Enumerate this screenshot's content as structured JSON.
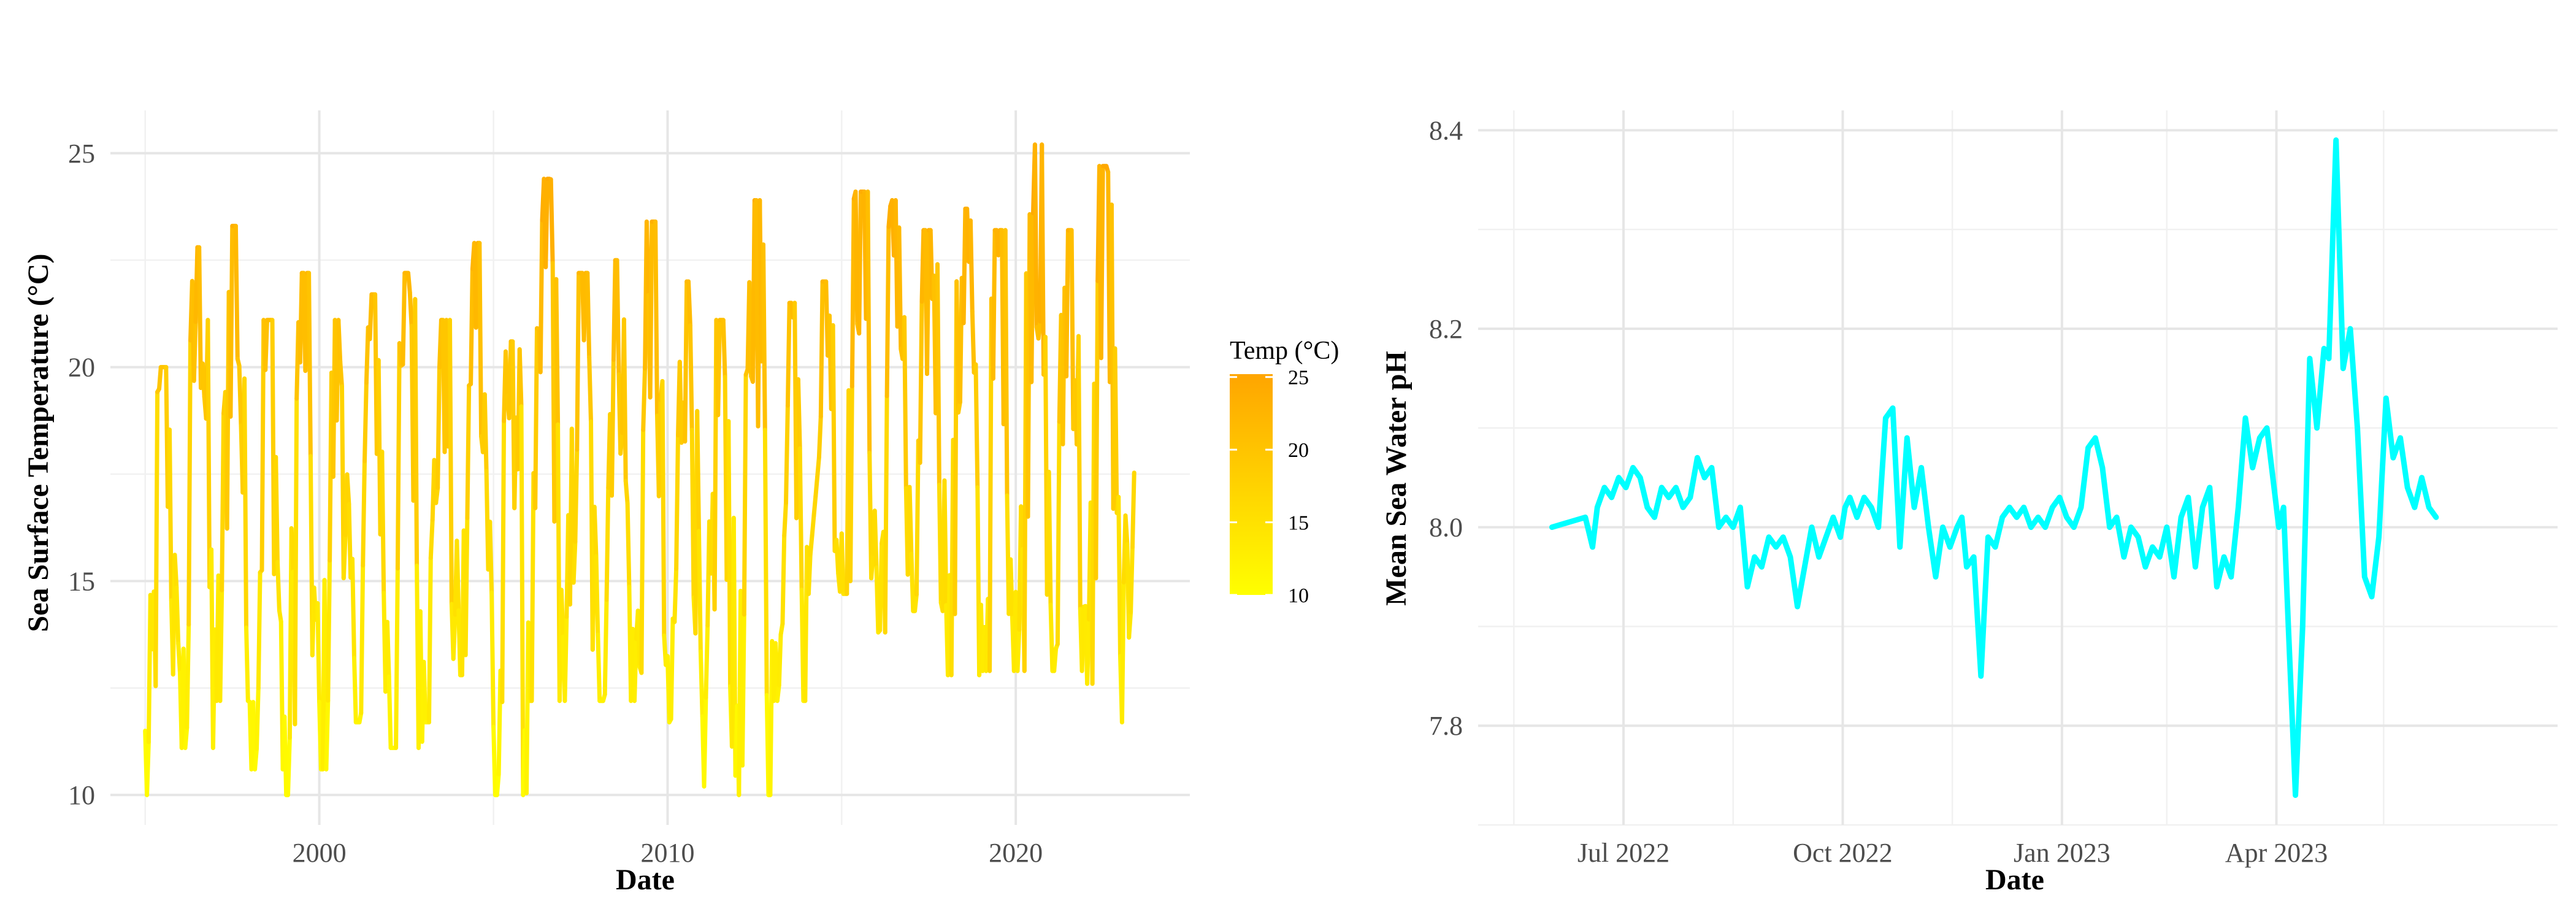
{
  "chart_data": [
    {
      "type": "line",
      "xlabel": "Date",
      "ylabel": "Sea Surface Temperature (°C)",
      "x_type": "date",
      "x_range": [
        "1995-01-01",
        "2023-06-01"
      ],
      "xlim": [
        "1994-01-01",
        "2024-12-31"
      ],
      "x_ticks": [
        {
          "label": "2000",
          "date": "2000-01-01"
        },
        {
          "label": "2010",
          "date": "2010-01-01"
        },
        {
          "label": "2020",
          "date": "2020-01-01"
        }
      ],
      "ylim": [
        9.3,
        26
      ],
      "y_ticks": [
        10,
        15,
        20,
        25
      ],
      "grid": true,
      "color_scale": {
        "title": "Temp (°C)",
        "low": "#FFFF00",
        "high": "#FFA500",
        "min": 10,
        "max": 25.2,
        "ticks": [
          10,
          15,
          20,
          25
        ]
      },
      "series": [
        {
          "points_per_year": 20,
          "yearly": [
            {
              "year": 1995,
              "min": 10.0,
              "max": 20.0
            },
            {
              "year": 1996,
              "min": 11.1,
              "max": 22.8
            },
            {
              "year": 1997,
              "min": 12.2,
              "max": 23.3
            },
            {
              "year": 1998,
              "min": 10.6,
              "max": 21.1
            },
            {
              "year": 1999,
              "min": 10.0,
              "max": 22.2
            },
            {
              "year": 2000,
              "min": 10.6,
              "max": 21.1
            },
            {
              "year": 2001,
              "min": 11.7,
              "max": 21.7
            },
            {
              "year": 2002,
              "min": 11.1,
              "max": 22.2
            },
            {
              "year": 2003,
              "min": 11.7,
              "max": 21.1
            },
            {
              "year": 2004,
              "min": 12.8,
              "max": 22.9
            },
            {
              "year": 2005,
              "min": 10.0,
              "max": 20.6
            },
            {
              "year": 2006,
              "min": 12.2,
              "max": 24.4
            },
            {
              "year": 2007,
              "min": 12.2,
              "max": 22.2
            },
            {
              "year": 2008,
              "min": 12.2,
              "max": 22.5
            },
            {
              "year": 2009,
              "min": 12.2,
              "max": 23.4
            },
            {
              "year": 2010,
              "min": 11.7,
              "max": 22.0
            },
            {
              "year": 2011,
              "min": 10.2,
              "max": 21.1
            },
            {
              "year": 2012,
              "min": 10.0,
              "max": 23.9
            },
            {
              "year": 2013,
              "min": 12.2,
              "max": 21.5
            },
            {
              "year": 2014,
              "min": 14.7,
              "max": 22.0
            },
            {
              "year": 2015,
              "min": 14.7,
              "max": 24.1
            },
            {
              "year": 2016,
              "min": 13.8,
              "max": 23.9
            },
            {
              "year": 2017,
              "min": 14.3,
              "max": 23.2
            },
            {
              "year": 2018,
              "min": 12.8,
              "max": 23.7
            },
            {
              "year": 2019,
              "min": 12.9,
              "max": 23.2
            },
            {
              "year": 2020,
              "min": 12.9,
              "max": 25.2
            },
            {
              "year": 2021,
              "min": 12.9,
              "max": 23.2
            },
            {
              "year": 2022,
              "min": 12.6,
              "max": 24.7
            },
            {
              "year": 2023,
              "min": 11.7,
              "max": 22.0
            }
          ]
        }
      ]
    },
    {
      "type": "line",
      "xlabel": "Date",
      "ylabel": "Mean Sea Water pH",
      "x_type": "date",
      "xlim": [
        "2022-05-01",
        "2023-07-28"
      ],
      "x_ticks": [
        {
          "label": "Jul 2022",
          "date": "2022-07-01"
        },
        {
          "label": "Oct 2022",
          "date": "2022-10-01"
        },
        {
          "label": "Jan 2023",
          "date": "2023-01-01"
        },
        {
          "label": "Apr 2023",
          "date": "2023-04-01"
        }
      ],
      "ylim": [
        7.7,
        8.42
      ],
      "y_ticks": [
        7.8,
        8.0,
        8.2,
        8.4
      ],
      "grid": true,
      "series": [
        {
          "color": "#00FFFF",
          "x": [
            "2022-06-01",
            "2022-06-15",
            "2022-06-18",
            "2022-06-20",
            "2022-06-23",
            "2022-06-26",
            "2022-06-29",
            "2022-07-02",
            "2022-07-05",
            "2022-07-08",
            "2022-07-11",
            "2022-07-14",
            "2022-07-17",
            "2022-07-20",
            "2022-07-23",
            "2022-07-26",
            "2022-07-29",
            "2022-08-01",
            "2022-08-04",
            "2022-08-07",
            "2022-08-10",
            "2022-08-13",
            "2022-08-16",
            "2022-08-19",
            "2022-08-22",
            "2022-08-25",
            "2022-08-28",
            "2022-08-31",
            "2022-09-03",
            "2022-09-06",
            "2022-09-09",
            "2022-09-12",
            "2022-09-15",
            "2022-09-18",
            "2022-09-21",
            "2022-09-24",
            "2022-09-27",
            "2022-09-30",
            "2022-10-02",
            "2022-10-04",
            "2022-10-07",
            "2022-10-10",
            "2022-10-13",
            "2022-10-16",
            "2022-10-19",
            "2022-10-22",
            "2022-10-25",
            "2022-10-28",
            "2022-10-31",
            "2022-11-03",
            "2022-11-06",
            "2022-11-09",
            "2022-11-12",
            "2022-11-15",
            "2022-11-18",
            "2022-11-20",
            "2022-11-22",
            "2022-11-25",
            "2022-11-28",
            "2022-12-01",
            "2022-12-04",
            "2022-12-07",
            "2022-12-10",
            "2022-12-13",
            "2022-12-16",
            "2022-12-19",
            "2022-12-22",
            "2022-12-25",
            "2022-12-28",
            "2022-12-31",
            "2023-01-03",
            "2023-01-06",
            "2023-01-09",
            "2023-01-12",
            "2023-01-15",
            "2023-01-18",
            "2023-01-21",
            "2023-01-24",
            "2023-01-27",
            "2023-01-30",
            "2023-02-02",
            "2023-02-05",
            "2023-02-08",
            "2023-02-11",
            "2023-02-14",
            "2023-02-17",
            "2023-02-20",
            "2023-02-23",
            "2023-02-26",
            "2023-03-01",
            "2023-03-04",
            "2023-03-07",
            "2023-03-10",
            "2023-03-13",
            "2023-03-16",
            "2023-03-19",
            "2023-03-22",
            "2023-03-25",
            "2023-03-28",
            "2023-03-31",
            "2023-04-02",
            "2023-04-04",
            "2023-04-06",
            "2023-04-09",
            "2023-04-12",
            "2023-04-15",
            "2023-04-18",
            "2023-04-21",
            "2023-04-23",
            "2023-04-26",
            "2023-04-29",
            "2023-05-02",
            "2023-05-05",
            "2023-05-08",
            "2023-05-11",
            "2023-05-14",
            "2023-05-17",
            "2023-05-20",
            "2023-05-23",
            "2023-05-26",
            "2023-05-29",
            "2023-06-01",
            "2023-06-04",
            "2023-06-07"
          ],
          "values": [
            8.0,
            8.01,
            7.98,
            8.02,
            8.04,
            8.03,
            8.05,
            8.04,
            8.06,
            8.05,
            8.02,
            8.01,
            8.04,
            8.03,
            8.04,
            8.02,
            8.03,
            8.07,
            8.05,
            8.06,
            8.0,
            8.01,
            8.0,
            8.02,
            7.94,
            7.97,
            7.96,
            7.99,
            7.98,
            7.99,
            7.97,
            7.92,
            7.96,
            8.0,
            7.97,
            7.99,
            8.01,
            7.99,
            8.02,
            8.03,
            8.01,
            8.03,
            8.02,
            8.0,
            8.11,
            8.12,
            7.98,
            8.09,
            8.02,
            8.06,
            8.0,
            7.95,
            8.0,
            7.98,
            8.0,
            8.01,
            7.96,
            7.97,
            7.85,
            7.99,
            7.98,
            8.01,
            8.02,
            8.01,
            8.02,
            8.0,
            8.01,
            8.0,
            8.02,
            8.03,
            8.01,
            8.0,
            8.02,
            8.08,
            8.09,
            8.06,
            8.0,
            8.01,
            7.97,
            8.0,
            7.99,
            7.96,
            7.98,
            7.97,
            8.0,
            7.95,
            8.01,
            8.03,
            7.96,
            8.02,
            8.04,
            7.94,
            7.97,
            7.95,
            8.02,
            8.11,
            8.06,
            8.09,
            8.1,
            8.04,
            8.0,
            8.02,
            7.9,
            7.73,
            7.9,
            8.17,
            8.1,
            8.18,
            8.17,
            8.39,
            8.16,
            8.2,
            8.1,
            7.95,
            7.93,
            7.99,
            8.13,
            8.07,
            8.09,
            8.04,
            8.02,
            8.05,
            8.02,
            8.01
          ]
        }
      ]
    }
  ]
}
